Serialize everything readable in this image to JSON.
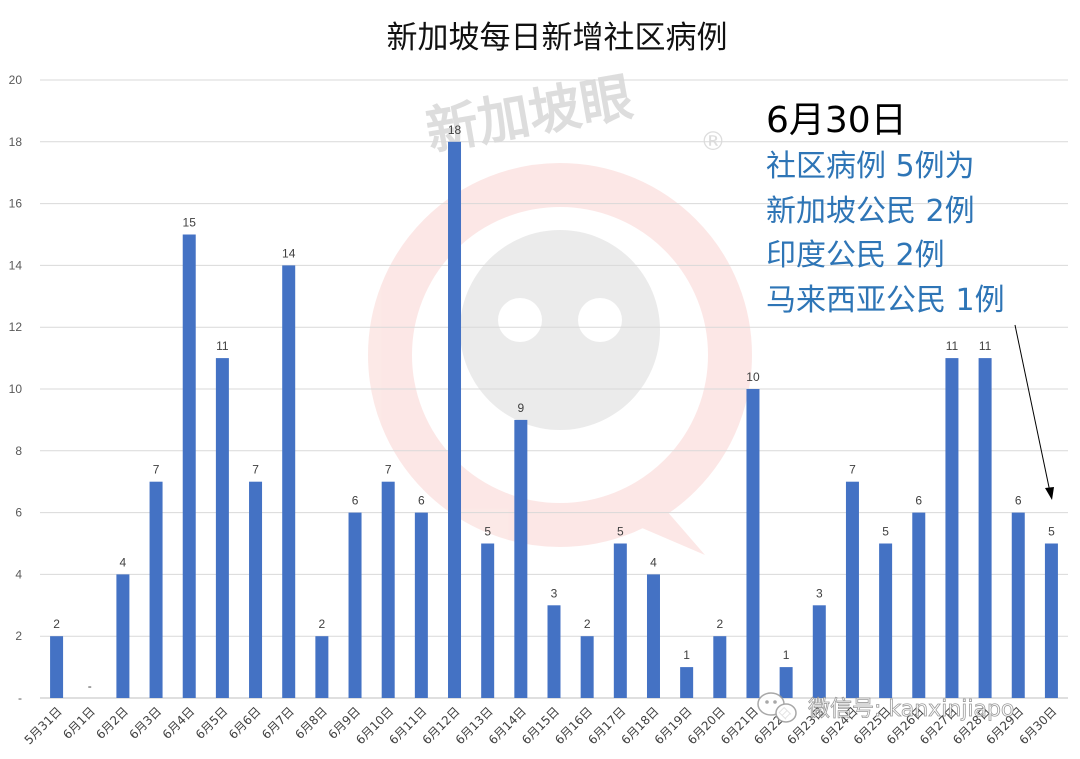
{
  "chart_data": {
    "type": "bar",
    "title": "新加坡每日新增社区病例",
    "xlabel": "",
    "ylabel": "",
    "ylim": [
      0,
      20
    ],
    "yticks": [
      {
        "value": 0,
        "label": "-"
      },
      {
        "value": 2,
        "label": "2"
      },
      {
        "value": 4,
        "label": "4"
      },
      {
        "value": 6,
        "label": "6"
      },
      {
        "value": 8,
        "label": "8"
      },
      {
        "value": 10,
        "label": "10"
      },
      {
        "value": 12,
        "label": "12"
      },
      {
        "value": 14,
        "label": "14"
      },
      {
        "value": 16,
        "label": "16"
      },
      {
        "value": 18,
        "label": "18"
      },
      {
        "value": 20,
        "label": "20"
      }
    ],
    "grid": true,
    "categories": [
      "5月31日",
      "6月1日",
      "6月2日",
      "6月3日",
      "6月4日",
      "6月5日",
      "6月6日",
      "6月7日",
      "6月8日",
      "6月9日",
      "6月10日",
      "6月11日",
      "6月12日",
      "6月13日",
      "6月14日",
      "6月15日",
      "6月16日",
      "6月17日",
      "6月18日",
      "6月19日",
      "6月20日",
      "6月21日",
      "6月22日",
      "6月23日",
      "6月24日",
      "6月25日",
      "6月26日",
      "6月27日",
      "6月28日",
      "6月29日",
      "6月30日"
    ],
    "values": [
      2,
      0,
      4,
      7,
      15,
      11,
      7,
      14,
      2,
      6,
      7,
      6,
      18,
      5,
      9,
      3,
      2,
      5,
      4,
      1,
      2,
      10,
      1,
      3,
      7,
      5,
      6,
      11,
      11,
      6,
      5
    ],
    "data_labels": [
      "2",
      "-",
      "4",
      "7",
      "15",
      "11",
      "7",
      "14",
      "2",
      "6",
      "7",
      "6",
      "18",
      "5",
      "9",
      "3",
      "2",
      "5",
      "4",
      "1",
      "2",
      "10",
      "1",
      "3",
      "7",
      "5",
      "6",
      "11",
      "11",
      "6",
      "5"
    ],
    "bar_color": "#4472c4",
    "annotation": {
      "date": "6月30日",
      "lines": [
        "社区病例 5例为",
        "新加坡公民 2例",
        "印度公民 2例",
        "马来西亚公民 1例"
      ],
      "color": "#2e75b6",
      "date_color": "#000000",
      "points_to": "6月30日"
    }
  },
  "watermark": {
    "text": "新加坡眼",
    "registered_mark": "®",
    "wechat_label": "微信号: kanxinjiapo",
    "wechat_icon": "wechat-icon",
    "logo_color": "#e8463c"
  }
}
